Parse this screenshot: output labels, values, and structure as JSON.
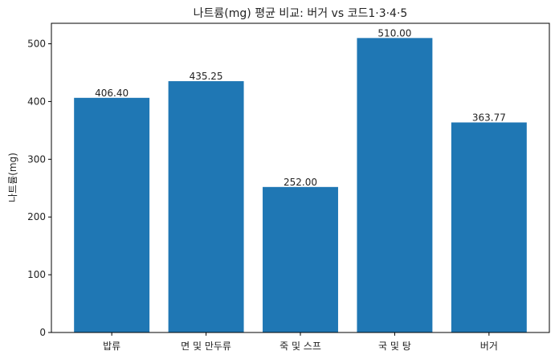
{
  "chart_data": {
    "type": "bar",
    "title": "나트륨(mg) 평균 비교: 버거 vs 코드1·3·4·5",
    "xlabel": "",
    "ylabel": "나트륨(mg)",
    "categories": [
      "밥류",
      "면 및 만두류",
      "죽 및 스프",
      "국 및 탕",
      "버거"
    ],
    "values": [
      406.4,
      435.25,
      252.0,
      510.0,
      363.77
    ],
    "data_labels": [
      "406.40",
      "435.25",
      "252.00",
      "510.00",
      "363.77"
    ],
    "ylim": [
      0,
      535.5
    ],
    "yticks": [
      0,
      100,
      200,
      300,
      400,
      500
    ],
    "grid": false,
    "bar_color": "#1f77b4"
  }
}
